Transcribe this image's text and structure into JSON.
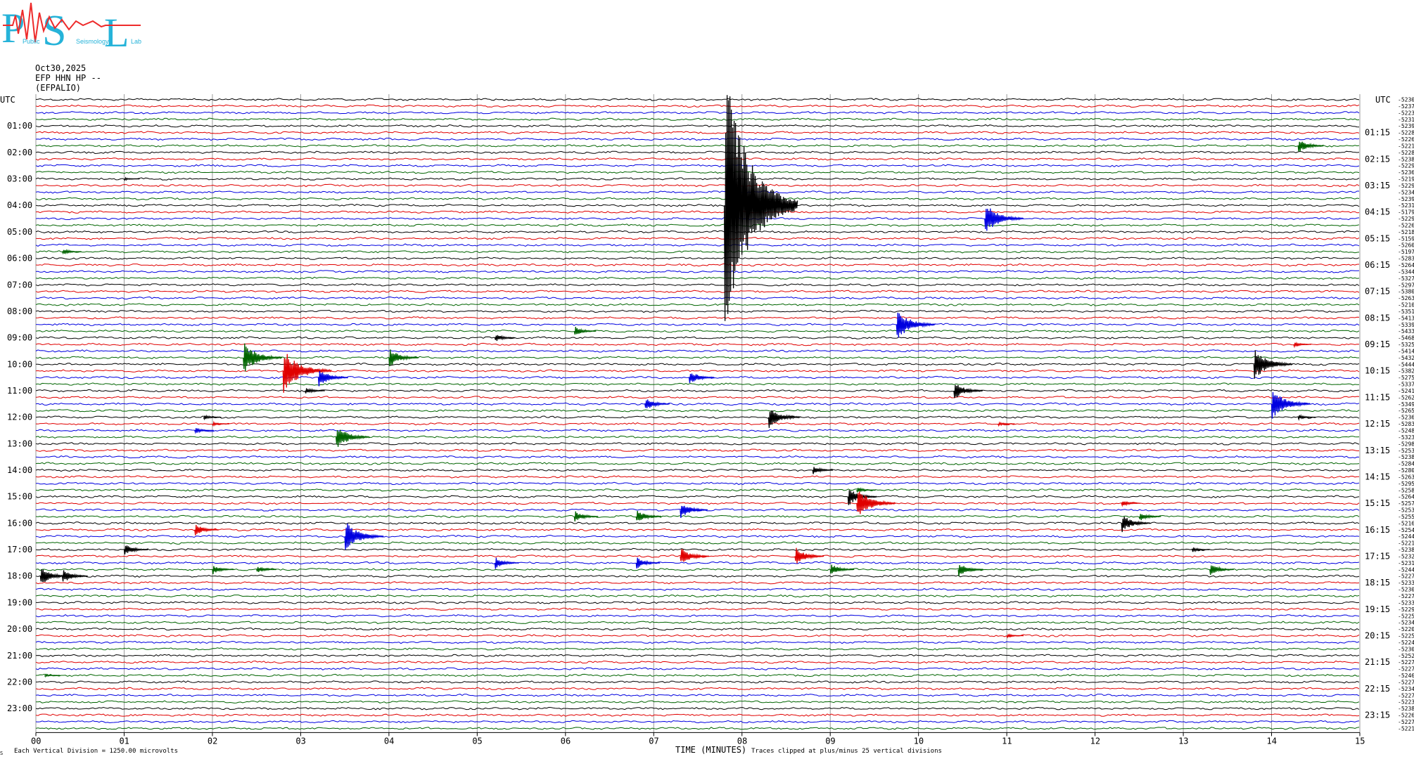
{
  "logo": {
    "letters": [
      "P",
      "S",
      "L"
    ],
    "small_words": [
      "Public",
      "Seismology",
      "Lab"
    ],
    "colors": {
      "letters": "#26b3d9",
      "wave": "#ee2b2b"
    }
  },
  "header": {
    "date": "Oct30,2025",
    "channel": "EFP HHN HP --",
    "station": "(EFPALIO)"
  },
  "chart_data": {
    "type": "helicorder",
    "title": "Oct30,2025",
    "left_axis_title": "UTC",
    "right_axis_title": "UTC",
    "xlabel": "TIME (MINUTES)",
    "xlim": [
      0,
      15
    ],
    "x_ticks": [
      "00",
      "01",
      "02",
      "03",
      "04",
      "05",
      "06",
      "07",
      "08",
      "09",
      "10",
      "11",
      "12",
      "13",
      "14",
      "15"
    ],
    "grid": "vertical lines every minute",
    "trace_colors": [
      "#000000",
      "#e00000",
      "#0000e0",
      "#006400"
    ],
    "trace_count": 96,
    "left_labels": [
      "01:00",
      "02:00",
      "03:00",
      "04:00",
      "05:00",
      "06:00",
      "07:00",
      "08:00",
      "09:00",
      "10:00",
      "11:00",
      "12:00",
      "13:00",
      "14:00",
      "15:00",
      "16:00",
      "17:00",
      "18:00",
      "19:00",
      "20:00",
      "21:00",
      "22:00",
      "23:00"
    ],
    "right_labels": [
      "01:15",
      "02:15",
      "03:15",
      "04:15",
      "05:15",
      "06:15",
      "07:15",
      "08:15",
      "09:15",
      "10:15",
      "11:15",
      "12:15",
      "13:15",
      "14:15",
      "15:15",
      "16:15",
      "17:15",
      "18:15",
      "19:15",
      "20:15",
      "21:15",
      "22:15",
      "23:15"
    ],
    "trace_offsets": [
      "-5230",
      "-5237",
      "-5223",
      "-5231",
      "-5239",
      "-5228",
      "-5226",
      "-5221",
      "-5228",
      "-5238",
      "-5229",
      "-5236",
      "-5219",
      "-5229",
      "-5234",
      "-5239",
      "-5231",
      "-5179",
      "-5229",
      "-5226",
      "-5218",
      "-5159",
      "-5260",
      "-5197",
      "-5283",
      "-5264",
      "-5344",
      "-5327",
      "-5297",
      "-5380",
      "-5263",
      "-5210",
      "-5351",
      "-5413",
      "-5339",
      "-5433",
      "-5468",
      "-5325",
      "-5414",
      "-5432",
      "-5444",
      "-5382",
      "-5275",
      "-5337",
      "-5241",
      "-5262",
      "-5349",
      "-5265",
      "-5236",
      "-5283",
      "-5248",
      "-5323",
      "-5298",
      "-5253",
      "-5238",
      "-5284",
      "-5280",
      "-5263",
      "-5295",
      "-5258",
      "-5264",
      "-5257",
      "-5253",
      "-5255",
      "-5216",
      "-5254",
      "-5244",
      "-5221",
      "-5238",
      "-5232",
      "-5231",
      "-5244",
      "-5227",
      "-5233",
      "-5230",
      "-5227",
      "-5233",
      "-5229",
      "-5225",
      "-5234",
      "-5220",
      "-5225",
      "-5224",
      "-5230",
      "-5252",
      "-5227",
      "-5227",
      "-5246",
      "-5227",
      "-5234",
      "-5227",
      "-5223",
      "-5238",
      "-5226",
      "-5227",
      "-5221"
    ],
    "events": [
      {
        "trace": 7,
        "minute": 14.3,
        "amp": 1.2
      },
      {
        "trace": 12,
        "minute": 1.0,
        "amp": 0.2
      },
      {
        "trace": 16,
        "minute": 7.8,
        "amp": 22
      },
      {
        "trace": 18,
        "minute": 10.75,
        "amp": 2.5
      },
      {
        "trace": 23,
        "minute": 0.3,
        "amp": 0.5
      },
      {
        "trace": 34,
        "minute": 9.75,
        "amp": 2.5
      },
      {
        "trace": 35,
        "minute": 6.1,
        "amp": 0.8
      },
      {
        "trace": 36,
        "minute": 5.2,
        "amp": 0.7
      },
      {
        "trace": 37,
        "minute": 14.25,
        "amp": 0.4
      },
      {
        "trace": 39,
        "minute": 2.35,
        "amp": 2.5
      },
      {
        "trace": 39,
        "minute": 4.0,
        "amp": 1.6
      },
      {
        "trace": 40,
        "minute": 13.8,
        "amp": 2.5
      },
      {
        "trace": 41,
        "minute": 2.8,
        "amp": 3.5
      },
      {
        "trace": 42,
        "minute": 3.2,
        "amp": 1.6
      },
      {
        "trace": 42,
        "minute": 7.4,
        "amp": 1.2
      },
      {
        "trace": 44,
        "minute": 3.05,
        "amp": 0.6
      },
      {
        "trace": 44,
        "minute": 10.4,
        "amp": 1.5
      },
      {
        "trace": 46,
        "minute": 6.9,
        "amp": 1.1
      },
      {
        "trace": 46,
        "minute": 14.0,
        "amp": 2.5
      },
      {
        "trace": 48,
        "minute": 1.9,
        "amp": 0.4
      },
      {
        "trace": 48,
        "minute": 8.3,
        "amp": 1.8
      },
      {
        "trace": 48,
        "minute": 14.3,
        "amp": 0.4
      },
      {
        "trace": 49,
        "minute": 2.0,
        "amp": 0.3
      },
      {
        "trace": 49,
        "minute": 10.9,
        "amp": 0.3
      },
      {
        "trace": 50,
        "minute": 1.8,
        "amp": 0.5
      },
      {
        "trace": 51,
        "minute": 3.4,
        "amp": 2.0
      },
      {
        "trace": 56,
        "minute": 8.8,
        "amp": 0.7
      },
      {
        "trace": 59,
        "minute": 9.3,
        "amp": 0.5
      },
      {
        "trace": 60,
        "minute": 9.2,
        "amp": 1.5
      },
      {
        "trace": 61,
        "minute": 9.3,
        "amp": 2.5
      },
      {
        "trace": 61,
        "minute": 12.3,
        "amp": 0.5
      },
      {
        "trace": 62,
        "minute": 7.3,
        "amp": 1.4
      },
      {
        "trace": 63,
        "minute": 6.1,
        "amp": 1.0
      },
      {
        "trace": 63,
        "minute": 6.8,
        "amp": 1.2
      },
      {
        "trace": 63,
        "minute": 12.5,
        "amp": 0.8
      },
      {
        "trace": 64,
        "minute": 12.3,
        "amp": 1.5
      },
      {
        "trace": 65,
        "minute": 1.8,
        "amp": 1.0
      },
      {
        "trace": 66,
        "minute": 3.5,
        "amp": 2.5
      },
      {
        "trace": 68,
        "minute": 1.0,
        "amp": 1.0
      },
      {
        "trace": 68,
        "minute": 13.1,
        "amp": 0.4
      },
      {
        "trace": 69,
        "minute": 7.3,
        "amp": 1.5
      },
      {
        "trace": 69,
        "minute": 8.6,
        "amp": 1.5
      },
      {
        "trace": 70,
        "minute": 6.8,
        "amp": 1.0
      },
      {
        "trace": 70,
        "minute": 5.2,
        "amp": 1.0
      },
      {
        "trace": 71,
        "minute": 2.0,
        "amp": 0.8
      },
      {
        "trace": 71,
        "minute": 2.5,
        "amp": 0.6
      },
      {
        "trace": 71,
        "minute": 9.0,
        "amp": 1.0
      },
      {
        "trace": 71,
        "minute": 10.45,
        "amp": 1.2
      },
      {
        "trace": 71,
        "minute": 13.3,
        "amp": 1.0
      },
      {
        "trace": 72,
        "minute": 0.05,
        "amp": 1.5
      },
      {
        "trace": 72,
        "minute": 0.3,
        "amp": 1.2
      },
      {
        "trace": 81,
        "minute": 11.0,
        "amp": 0.3
      },
      {
        "trace": 87,
        "minute": 0.1,
        "amp": 0.2
      }
    ]
  },
  "footer": {
    "note_left": "Each Vertical Division = 1250.00 microvolts",
    "note_right": "Traces clipped at plus/minus 25 vertical divisions",
    "corner_mark": "S"
  }
}
